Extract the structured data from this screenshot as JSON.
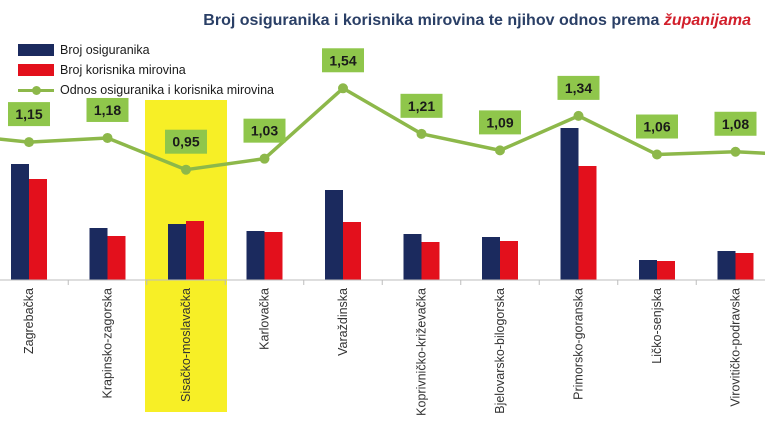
{
  "title": {
    "main": "Broj osiguranika i korisnika mirovina te njihov odnos prema",
    "emphasis": "županijama"
  },
  "legend": {
    "insured": "Broj osiguranika",
    "pensioners": "Broj korisnika mirovina",
    "ratio": "Odnos osiguranika i korisnika mirovina"
  },
  "colors": {
    "insured": "#1b2a5e",
    "pensioners": "#e3101c",
    "ratio": "#8db84a",
    "label_bg": "#8fc64b",
    "highlight": "#f7ef26"
  },
  "chart_data": {
    "type": "bar",
    "categories": [
      "Zagrebačka",
      "Krapinsko-zagorska",
      "Sisačko-moslavačka",
      "Karlovačka",
      "Varaždinska",
      "Koprivničko-križevačka",
      "Bjelovarsko-bilogorska",
      "Primorsko-goranska",
      "Ličko-senjska",
      "Virovitičko-podravska"
    ],
    "series": [
      {
        "name": "Broj osiguranika",
        "type": "bar",
        "values": [
          116,
          52,
          56,
          49,
          90,
          46,
          43,
          152,
          20,
          29
        ]
      },
      {
        "name": "Broj korisnika mirovina",
        "type": "bar",
        "values": [
          101,
          44,
          59,
          48,
          58,
          38,
          39,
          114,
          19,
          27
        ]
      },
      {
        "name": "Odnos osiguranika i korisnika mirovina",
        "type": "line",
        "values": [
          1.15,
          1.18,
          0.95,
          1.03,
          1.54,
          1.21,
          1.09,
          1.34,
          1.06,
          1.08
        ]
      }
    ],
    "ratio_labels": [
      "1,15",
      "1,18",
      "0,95",
      "1,03",
      "1,54",
      "1,21",
      "1,09",
      "1,34",
      "1,06",
      "1,08"
    ],
    "highlighted_category": "Sisačko-moslavačka",
    "bar_ylim": [
      0,
      160
    ],
    "line_ylim": [
      0.6,
      1.6
    ],
    "grid": false,
    "legend_position": "top-left"
  }
}
